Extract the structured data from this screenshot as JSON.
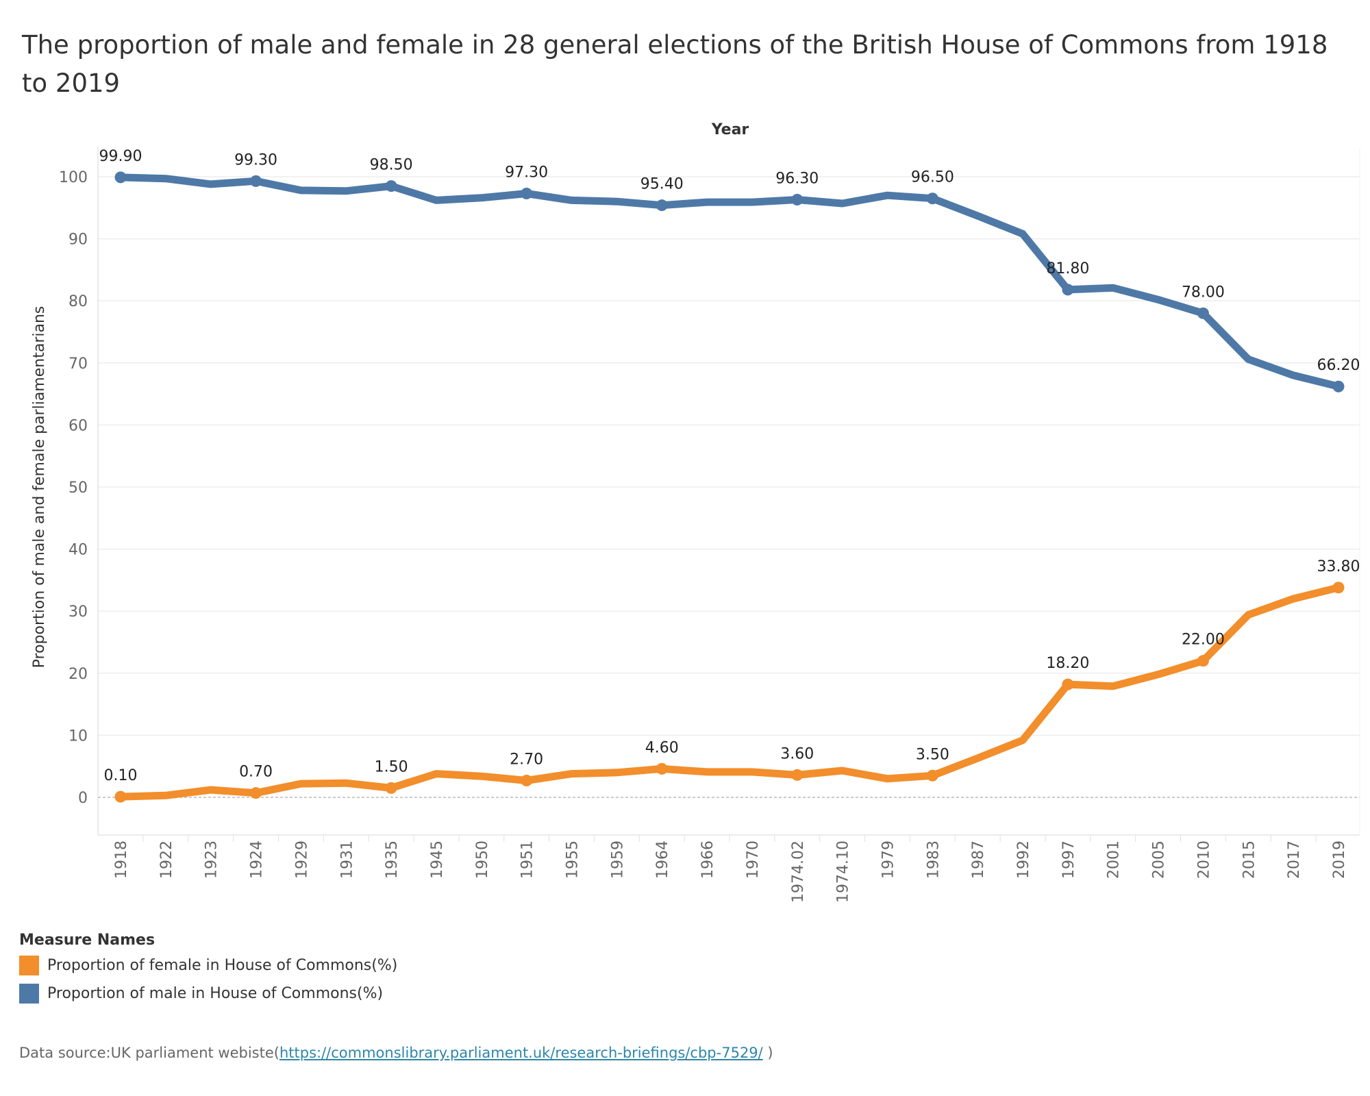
{
  "chart_data": {
    "type": "line",
    "title": "The proportion of male and female in 28 general elections of the British House of Commons from 1918 to 2019",
    "xlabel": "Year",
    "ylabel": "Proportion of male and female parliamentarians",
    "ylim": [
      -6,
      104
    ],
    "yticks": [
      0,
      10,
      20,
      30,
      40,
      50,
      60,
      70,
      80,
      90,
      100
    ],
    "grid": true,
    "legend_title": "Measure Names",
    "legend_position": "bottom-left",
    "categories": [
      "1918",
      "1922",
      "1923",
      "1924",
      "1929",
      "1931",
      "1935",
      "1945",
      "1950",
      "1951",
      "1955",
      "1959",
      "1964",
      "1966",
      "1970",
      "1974.02",
      "1974.10",
      "1979",
      "1983",
      "1987",
      "1992",
      "1997",
      "2001",
      "2005",
      "2010",
      "2015",
      "2017",
      "2019"
    ],
    "series": [
      {
        "name": "Proportion of female in House of Commons(%)",
        "color": "#f28e2b",
        "values": [
          0.1,
          0.3,
          1.2,
          0.7,
          2.2,
          2.3,
          1.5,
          3.8,
          3.4,
          2.7,
          3.8,
          4.0,
          4.6,
          4.1,
          4.1,
          3.6,
          4.3,
          3.0,
          3.5,
          6.3,
          9.2,
          18.2,
          17.9,
          19.8,
          22.0,
          29.4,
          32.0,
          33.8
        ],
        "labels": [
          "0.10",
          "",
          "",
          "0.70",
          "",
          "",
          "1.50",
          "",
          "",
          "2.70",
          "",
          "",
          "4.60",
          "",
          "",
          "3.60",
          "",
          "",
          "3.50",
          "",
          "",
          "18.20",
          "",
          "",
          "22.00",
          "",
          "",
          "33.80"
        ]
      },
      {
        "name": "Proportion of male in House of Commons(%)",
        "color": "#4e79a7",
        "values": [
          99.9,
          99.7,
          98.8,
          99.3,
          97.8,
          97.7,
          98.5,
          96.2,
          96.6,
          97.3,
          96.2,
          96.0,
          95.4,
          95.9,
          95.9,
          96.3,
          95.7,
          97.0,
          96.5,
          93.7,
          90.8,
          81.8,
          82.1,
          80.2,
          78.0,
          70.6,
          68.0,
          66.2
        ],
        "labels": [
          "99.90",
          "",
          "",
          "99.30",
          "",
          "",
          "98.50",
          "",
          "",
          "97.30",
          "",
          "",
          "95.40",
          "",
          "",
          "96.30",
          "",
          "",
          "96.50",
          "",
          "",
          "81.80",
          "",
          "",
          "78.00",
          "",
          "",
          "66.20"
        ]
      }
    ]
  },
  "source": {
    "prefix": "Data source:UK parliament webiste(",
    "link": "https://commonslibrary.parliament.uk/research-briefings/cbp-7529/",
    "suffix": " )"
  }
}
